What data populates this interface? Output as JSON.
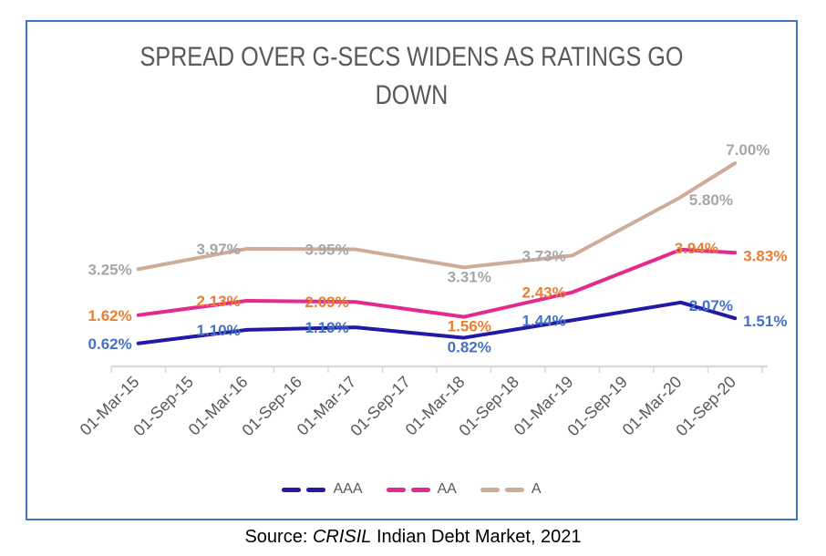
{
  "frame": {
    "border_color": "#4472C4"
  },
  "title": {
    "text": "SPREAD OVER G-SECS WIDENS AS RATINGS GO DOWN",
    "line1": "SPREAD OVER G-SECS WIDENS AS RATINGS GO",
    "line2": "DOWN",
    "color": "#595959"
  },
  "source": {
    "prefix": "Source: ",
    "publisher": "CRISIL",
    "suffix": " Indian Debt Market, 2021"
  },
  "chart_data": {
    "type": "line",
    "title": "SPREAD OVER G-SECS WIDENS AS RATINGS GO DOWN",
    "categories": [
      "01-Mar-15",
      "01-Sep-15",
      "01-Mar-16",
      "01-Sep-16",
      "01-Mar-17",
      "01-Sep-17",
      "01-Mar-18",
      "01-Sep-18",
      "01-Mar-19",
      "01-Sep-19",
      "01-Mar-20",
      "01-Sep-20"
    ],
    "ylim": [
      0,
      8
    ],
    "grid": false,
    "legend_position": "bottom",
    "axis_color": "#D9D9D9",
    "tick_label_color": "#595959",
    "series": [
      {
        "name": "AAA",
        "line_color": "#2318A8",
        "label_color": "#4472C4",
        "points": [
          {
            "category": "01-Mar-15",
            "value": 0.62,
            "label": "0.62%",
            "placement": "left"
          },
          {
            "category": "01-Mar-16",
            "value": 1.1,
            "label": "1.10%",
            "placement": "left"
          },
          {
            "category": "01-Mar-17",
            "value": 1.19,
            "label": "1.19%",
            "placement": "left"
          },
          {
            "category": "01-Mar-18",
            "value": 0.82,
            "label": "0.82%",
            "placement": "below"
          },
          {
            "category": "01-Mar-19",
            "value": 1.44,
            "label": "1.44%",
            "placement": "left"
          },
          {
            "category": "01-Mar-20",
            "value": 2.07,
            "label": "2.07%",
            "placement": "right"
          },
          {
            "category": "01-Sep-20",
            "value": 1.51,
            "label": "1.51%",
            "placement": "right"
          }
        ]
      },
      {
        "name": "AA",
        "line_color": "#E32A8E",
        "label_color": "#ED7D31",
        "points": [
          {
            "category": "01-Mar-15",
            "value": 1.62,
            "label": "1.62%",
            "placement": "left"
          },
          {
            "category": "01-Mar-16",
            "value": 2.13,
            "label": "2.13%",
            "placement": "left"
          },
          {
            "category": "01-Mar-17",
            "value": 2.09,
            "label": "2.09%",
            "placement": "left"
          },
          {
            "category": "01-Mar-18",
            "value": 1.56,
            "label": "1.56%",
            "placement": "below"
          },
          {
            "category": "01-Mar-19",
            "value": 2.43,
            "label": "2.43%",
            "placement": "left"
          },
          {
            "category": "01-Mar-20",
            "value": 3.94,
            "label": "3.94%",
            "placement": "right-tight"
          },
          {
            "category": "01-Sep-20",
            "value": 3.83,
            "label": "3.83%",
            "placement": "right"
          }
        ]
      },
      {
        "name": "A",
        "line_color": "#CFAC97",
        "label_color": "#A6A6A6",
        "points": [
          {
            "category": "01-Mar-15",
            "value": 3.25,
            "label": "3.25%",
            "placement": "left"
          },
          {
            "category": "01-Mar-16",
            "value": 3.97,
            "label": "3.97%",
            "placement": "left"
          },
          {
            "category": "01-Mar-17",
            "value": 3.95,
            "label": "3.95%",
            "placement": "left"
          },
          {
            "category": "01-Mar-18",
            "value": 3.31,
            "label": "3.31%",
            "placement": "below"
          },
          {
            "category": "01-Mar-19",
            "value": 3.73,
            "label": "3.73%",
            "placement": "left"
          },
          {
            "category": "01-Mar-20",
            "value": 5.8,
            "label": "5.80%",
            "placement": "right"
          },
          {
            "category": "01-Sep-20",
            "value": 7.0,
            "label": "7.00%",
            "placement": "above-right"
          }
        ]
      }
    ]
  }
}
